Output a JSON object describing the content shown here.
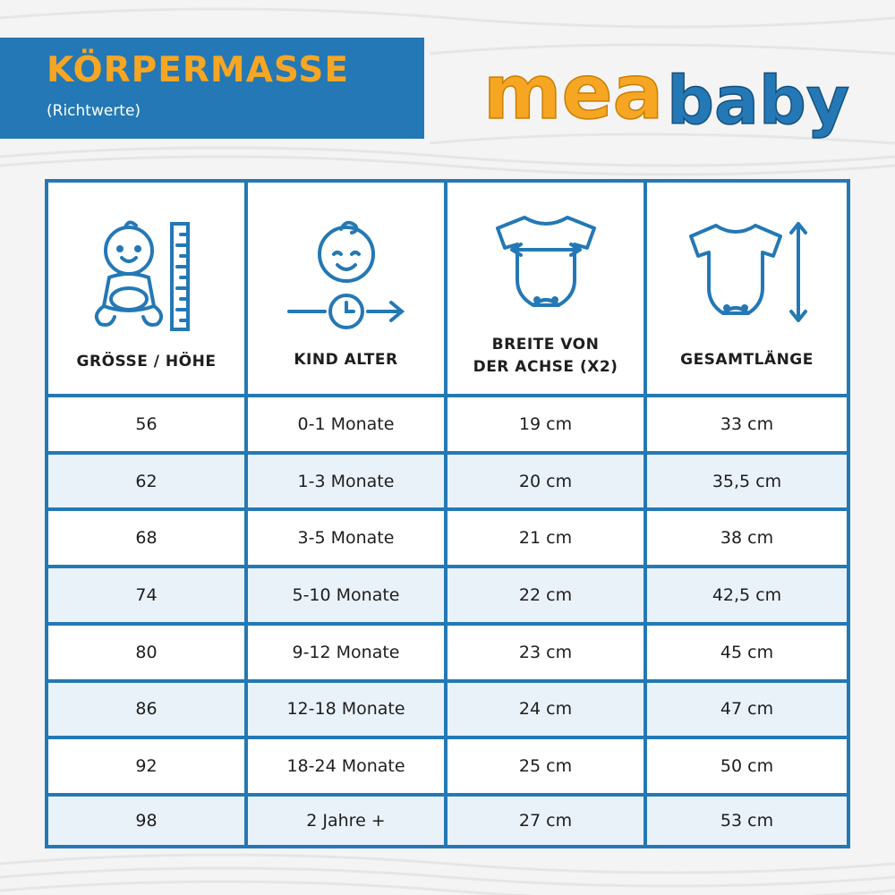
{
  "header": {
    "title": "KÖRPERMASSE",
    "subtitle": "(Richtwerte)"
  },
  "logo": {
    "word1": "mea",
    "word2": "baby",
    "color1": "#f6a623",
    "color2": "#2478b5"
  },
  "colors": {
    "accent": "#2478b5",
    "title": "#f6a623",
    "row_alt": "#eaf2f9"
  },
  "table": {
    "columns": [
      {
        "label": "GRÖSSE / HÖHE",
        "icon": "baby-height-icon"
      },
      {
        "label": "KIND ALTER",
        "icon": "child-age-icon"
      },
      {
        "label_line1": "BREITE VON",
        "label_line2": "DER ACHSE (X2)",
        "icon": "bodysuit-width-icon"
      },
      {
        "label": "GESAMTLÄNGE",
        "icon": "bodysuit-length-icon"
      }
    ],
    "rows": [
      [
        "56",
        "0-1 Monate",
        "19 cm",
        "33 cm"
      ],
      [
        "62",
        "1-3 Monate",
        "20 cm",
        "35,5 cm"
      ],
      [
        "68",
        "3-5 Monate",
        "21 cm",
        "38 cm"
      ],
      [
        "74",
        "5-10 Monate",
        "22 cm",
        "42,5 cm"
      ],
      [
        "80",
        "9-12 Monate",
        "23 cm",
        "45 cm"
      ],
      [
        "86",
        "12-18 Monate",
        "24 cm",
        "47 cm"
      ],
      [
        "92",
        "18-24 Monate",
        "25 cm",
        "50 cm"
      ],
      [
        "98",
        "2 Jahre +",
        "27 cm",
        "53 cm"
      ]
    ]
  }
}
